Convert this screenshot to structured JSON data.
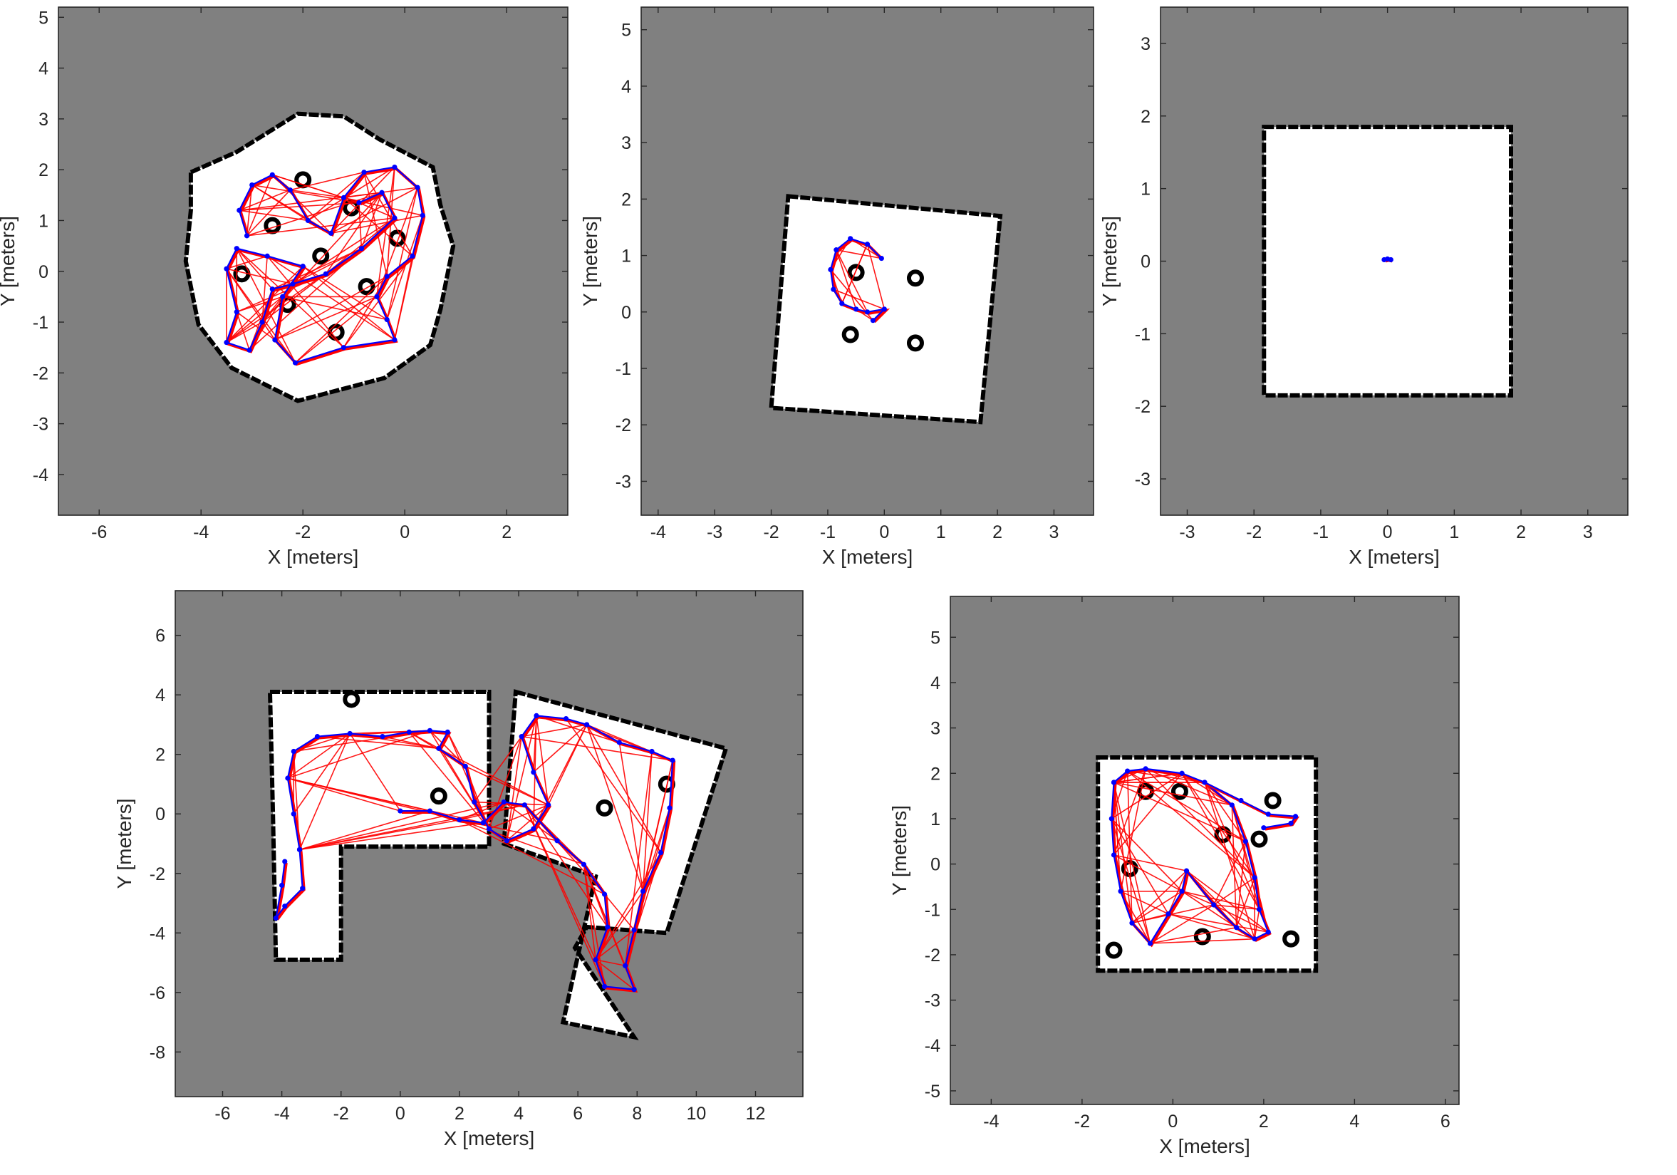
{
  "figure": {
    "background": "#ffffff",
    "map_unknown_color": "#808080",
    "map_free_color": "#ffffff",
    "map_occupied_color": "#000000",
    "trajectory_color": "#0000ff",
    "constraint_color": "#ff0000"
  },
  "chart_data": [
    {
      "type": "scatter",
      "title": "",
      "xlabel": "X [meters]",
      "ylabel": "Y [meters]",
      "xlim": [
        -6.8,
        3.2
      ],
      "ylim": [
        -4.8,
        5.2
      ],
      "xticks": [
        -6,
        -4,
        -2,
        0,
        2
      ],
      "yticks": [
        -4,
        -3,
        -2,
        -1,
        0,
        1,
        2,
        3,
        4,
        5
      ],
      "grid": false,
      "free_space": [
        [
          -4.2,
          1.95
        ],
        [
          -3.3,
          2.35
        ],
        [
          -2.1,
          3.1
        ],
        [
          -1.2,
          3.05
        ],
        [
          -0.5,
          2.6
        ],
        [
          0.55,
          2.05
        ],
        [
          0.7,
          1.3
        ],
        [
          0.95,
          0.5
        ],
        [
          0.7,
          -0.75
        ],
        [
          0.5,
          -1.45
        ],
        [
          -0.4,
          -2.1
        ],
        [
          -2.1,
          -2.55
        ],
        [
          -3.4,
          -1.9
        ],
        [
          -4.05,
          -1.05
        ],
        [
          -4.3,
          0.2
        ],
        [
          -4.2,
          1.2
        ]
      ],
      "obstacles": [
        [
          -2.0,
          1.8
        ],
        [
          -1.05,
          1.25
        ],
        [
          -2.6,
          0.9
        ],
        [
          -0.15,
          0.65
        ],
        [
          -1.65,
          0.3
        ],
        [
          -3.2,
          -0.05
        ],
        [
          -0.75,
          -0.3
        ],
        [
          -2.3,
          -0.65
        ],
        [
          -1.35,
          -1.2
        ]
      ],
      "trajectory": [
        [
          -3.1,
          0.7
        ],
        [
          -3.25,
          1.2
        ],
        [
          -3.0,
          1.7
        ],
        [
          -2.6,
          1.9
        ],
        [
          -2.25,
          1.6
        ],
        [
          -1.9,
          1.0
        ],
        [
          -1.45,
          0.75
        ],
        [
          -1.2,
          1.45
        ],
        [
          -0.8,
          1.95
        ],
        [
          -0.2,
          2.05
        ],
        [
          0.25,
          1.65
        ],
        [
          0.35,
          1.1
        ],
        [
          0.15,
          0.3
        ],
        [
          -0.35,
          -0.1
        ],
        [
          -0.55,
          -0.5
        ],
        [
          -0.35,
          -0.95
        ],
        [
          -0.2,
          -1.35
        ],
        [
          -1.2,
          -1.5
        ],
        [
          -2.15,
          -1.8
        ],
        [
          -2.55,
          -1.35
        ],
        [
          -2.4,
          -0.5
        ],
        [
          -2.0,
          0.1
        ],
        [
          -2.7,
          0.3
        ],
        [
          -3.3,
          0.45
        ],
        [
          -3.5,
          0.05
        ],
        [
          -3.3,
          -0.8
        ],
        [
          -3.5,
          -1.4
        ],
        [
          -3.05,
          -1.55
        ],
        [
          -2.8,
          -1.0
        ],
        [
          -2.6,
          -0.35
        ],
        [
          -2.2,
          -0.25
        ],
        [
          -1.55,
          -0.05
        ],
        [
          -0.85,
          0.45
        ],
        [
          -0.2,
          1.05
        ],
        [
          -0.45,
          1.55
        ],
        [
          -0.9,
          1.35
        ]
      ],
      "constraint_pairs": 80
    },
    {
      "type": "scatter",
      "title": "",
      "xlabel": "X [meters]",
      "ylabel": "Y [meters]",
      "xlim": [
        -4.3,
        3.7
      ],
      "ylim": [
        -3.6,
        5.4
      ],
      "xticks": [
        -4,
        -3,
        -2,
        -1,
        0,
        1,
        2,
        3
      ],
      "yticks": [
        -3,
        -2,
        -1,
        0,
        1,
        2,
        3,
        4,
        5
      ],
      "grid": false,
      "free_space": [
        [
          -1.7,
          2.05
        ],
        [
          2.05,
          1.7
        ],
        [
          1.7,
          -1.95
        ],
        [
          -2.0,
          -1.7
        ]
      ],
      "obstacles": [
        [
          -0.5,
          0.7
        ],
        [
          0.55,
          0.6
        ],
        [
          -0.6,
          -0.4
        ],
        [
          0.55,
          -0.55
        ]
      ],
      "trajectory": [
        [
          -0.05,
          0.95
        ],
        [
          -0.3,
          1.2
        ],
        [
          -0.6,
          1.3
        ],
        [
          -0.85,
          1.1
        ],
        [
          -0.95,
          0.75
        ],
        [
          -0.9,
          0.4
        ],
        [
          -0.75,
          0.15
        ],
        [
          -0.5,
          0.05
        ],
        [
          -0.3,
          0.0
        ],
        [
          0.0,
          0.05
        ],
        [
          -0.2,
          -0.15
        ]
      ],
      "constraint_pairs": 12
    },
    {
      "type": "scatter",
      "title": "",
      "xlabel": "X [meters]",
      "ylabel": "Y [meters]",
      "xlim": [
        -3.4,
        3.6
      ],
      "ylim": [
        -3.5,
        3.5
      ],
      "xticks": [
        -3,
        -2,
        -1,
        0,
        1,
        2,
        3
      ],
      "yticks": [
        -3,
        -2,
        -1,
        0,
        1,
        2,
        3
      ],
      "grid": false,
      "free_space": [
        [
          -1.85,
          1.85
        ],
        [
          1.85,
          1.85
        ],
        [
          1.85,
          -1.85
        ],
        [
          -1.85,
          -1.85
        ]
      ],
      "obstacles": [],
      "trajectory": [
        [
          -0.05,
          0.02
        ],
        [
          0.0,
          0.03
        ],
        [
          0.05,
          0.02
        ]
      ],
      "constraint_pairs": 0
    },
    {
      "type": "scatter",
      "title": "",
      "xlabel": "X [meters]",
      "ylabel": "Y [meters]",
      "xlim": [
        -7.6,
        13.6
      ],
      "ylim": [
        -9.5,
        7.5
      ],
      "xticks": [
        -6,
        -4,
        -2,
        0,
        2,
        4,
        6,
        8,
        10,
        12
      ],
      "yticks": [
        -8,
        -6,
        -4,
        -2,
        0,
        2,
        4,
        6
      ],
      "grid": false,
      "free_space": [
        [
          -4.4,
          4.1
        ],
        [
          3.0,
          4.1
        ],
        [
          3.0,
          -1.1
        ],
        [
          -2.0,
          -1.1
        ],
        [
          -2.0,
          -4.9
        ],
        [
          -4.2,
          -4.9
        ],
        [
          -4.3,
          0.0
        ]
      ],
      "free_space_2": [
        [
          3.9,
          4.1
        ],
        [
          11.0,
          2.2
        ],
        [
          9.0,
          -4.0
        ],
        [
          6.3,
          -3.8
        ],
        [
          5.9,
          -4.5
        ],
        [
          7.9,
          -7.5
        ],
        [
          5.5,
          -7.0
        ],
        [
          6.6,
          -2.1
        ],
        [
          3.5,
          -1.0
        ]
      ],
      "obstacles": [
        [
          -1.65,
          3.85
        ],
        [
          1.3,
          0.6
        ],
        [
          6.9,
          0.2
        ],
        [
          9.0,
          1.0
        ]
      ],
      "trajectory": [
        [
          -3.4,
          -1.2
        ],
        [
          -3.6,
          0.0
        ],
        [
          -3.8,
          1.2
        ],
        [
          -3.6,
          2.1
        ],
        [
          -2.8,
          2.6
        ],
        [
          -1.7,
          2.7
        ],
        [
          -0.6,
          2.6
        ],
        [
          0.3,
          2.75
        ],
        [
          1.0,
          2.8
        ],
        [
          1.6,
          2.75
        ],
        [
          1.3,
          2.2
        ],
        [
          2.2,
          1.6
        ],
        [
          2.5,
          0.4
        ],
        [
          3.0,
          -0.5
        ],
        [
          3.6,
          -0.9
        ],
        [
          4.5,
          -0.5
        ],
        [
          5.0,
          0.3
        ],
        [
          4.5,
          1.4
        ],
        [
          4.1,
          2.6
        ],
        [
          4.6,
          3.3
        ],
        [
          5.6,
          3.2
        ],
        [
          6.3,
          3.0
        ],
        [
          7.4,
          2.4
        ],
        [
          8.5,
          2.1
        ],
        [
          9.2,
          1.8
        ],
        [
          9.1,
          0.2
        ],
        [
          8.8,
          -1.3
        ],
        [
          8.2,
          -2.6
        ],
        [
          7.9,
          -3.9
        ],
        [
          7.6,
          -5.1
        ],
        [
          7.9,
          -5.9
        ],
        [
          6.9,
          -5.8
        ],
        [
          6.6,
          -4.9
        ],
        [
          7.0,
          -3.8
        ],
        [
          6.9,
          -2.7
        ],
        [
          6.2,
          -1.7
        ],
        [
          5.3,
          -0.9
        ],
        [
          4.2,
          0.3
        ],
        [
          3.5,
          0.4
        ],
        [
          2.8,
          -0.3
        ],
        [
          2.0,
          -0.2
        ],
        [
          1.0,
          0.1
        ],
        [
          0.0,
          0.1
        ]
      ],
      "trajectory_branch": [
        [
          -3.4,
          -1.2
        ],
        [
          -3.3,
          -2.5
        ],
        [
          -3.9,
          -3.1
        ],
        [
          -4.2,
          -3.5
        ],
        [
          -4.0,
          -2.4
        ],
        [
          -3.9,
          -1.6
        ]
      ],
      "constraint_pairs": 90
    },
    {
      "type": "scatter",
      "title": "",
      "xlabel": "X [meters]",
      "ylabel": "Y [meters]",
      "xlim": [
        -4.9,
        6.3
      ],
      "ylim": [
        -5.3,
        5.9
      ],
      "xticks": [
        -4,
        -2,
        0,
        2,
        4,
        6
      ],
      "yticks": [
        -5,
        -4,
        -3,
        -2,
        -1,
        0,
        1,
        2,
        3,
        4,
        5
      ],
      "grid": false,
      "free_space": [
        [
          -1.65,
          2.35
        ],
        [
          3.15,
          2.35
        ],
        [
          3.15,
          -2.35
        ],
        [
          -1.65,
          -2.35
        ]
      ],
      "obstacles": [
        [
          -0.6,
          1.6
        ],
        [
          0.15,
          1.6
        ],
        [
          1.1,
          0.65
        ],
        [
          1.9,
          0.55
        ],
        [
          2.2,
          1.4
        ],
        [
          -0.95,
          -0.1
        ],
        [
          0.65,
          -1.6
        ],
        [
          -1.3,
          -1.9
        ],
        [
          2.6,
          -1.65
        ]
      ],
      "trajectory": [
        [
          -1.3,
          1.8
        ],
        [
          -1.0,
          2.05
        ],
        [
          -0.6,
          2.1
        ],
        [
          0.2,
          2.0
        ],
        [
          0.7,
          1.8
        ],
        [
          1.3,
          1.3
        ],
        [
          1.6,
          0.5
        ],
        [
          1.8,
          -0.3
        ],
        [
          1.9,
          -1.0
        ],
        [
          2.1,
          -1.5
        ],
        [
          1.8,
          -1.65
        ],
        [
          1.4,
          -1.4
        ],
        [
          0.9,
          -0.9
        ],
        [
          0.3,
          -0.15
        ],
        [
          0.2,
          -0.6
        ],
        [
          -0.1,
          -1.1
        ],
        [
          -0.5,
          -1.75
        ],
        [
          -0.9,
          -1.3
        ],
        [
          -1.15,
          -0.6
        ],
        [
          -1.3,
          0.2
        ],
        [
          -1.35,
          1.0
        ],
        [
          -1.3,
          1.8
        ]
      ],
      "trajectory_spur": [
        [
          0.7,
          1.8
        ],
        [
          1.5,
          1.4
        ],
        [
          2.1,
          1.1
        ],
        [
          2.7,
          1.05
        ],
        [
          2.6,
          0.9
        ],
        [
          2.0,
          0.8
        ]
      ],
      "constraint_pairs": 70
    }
  ]
}
